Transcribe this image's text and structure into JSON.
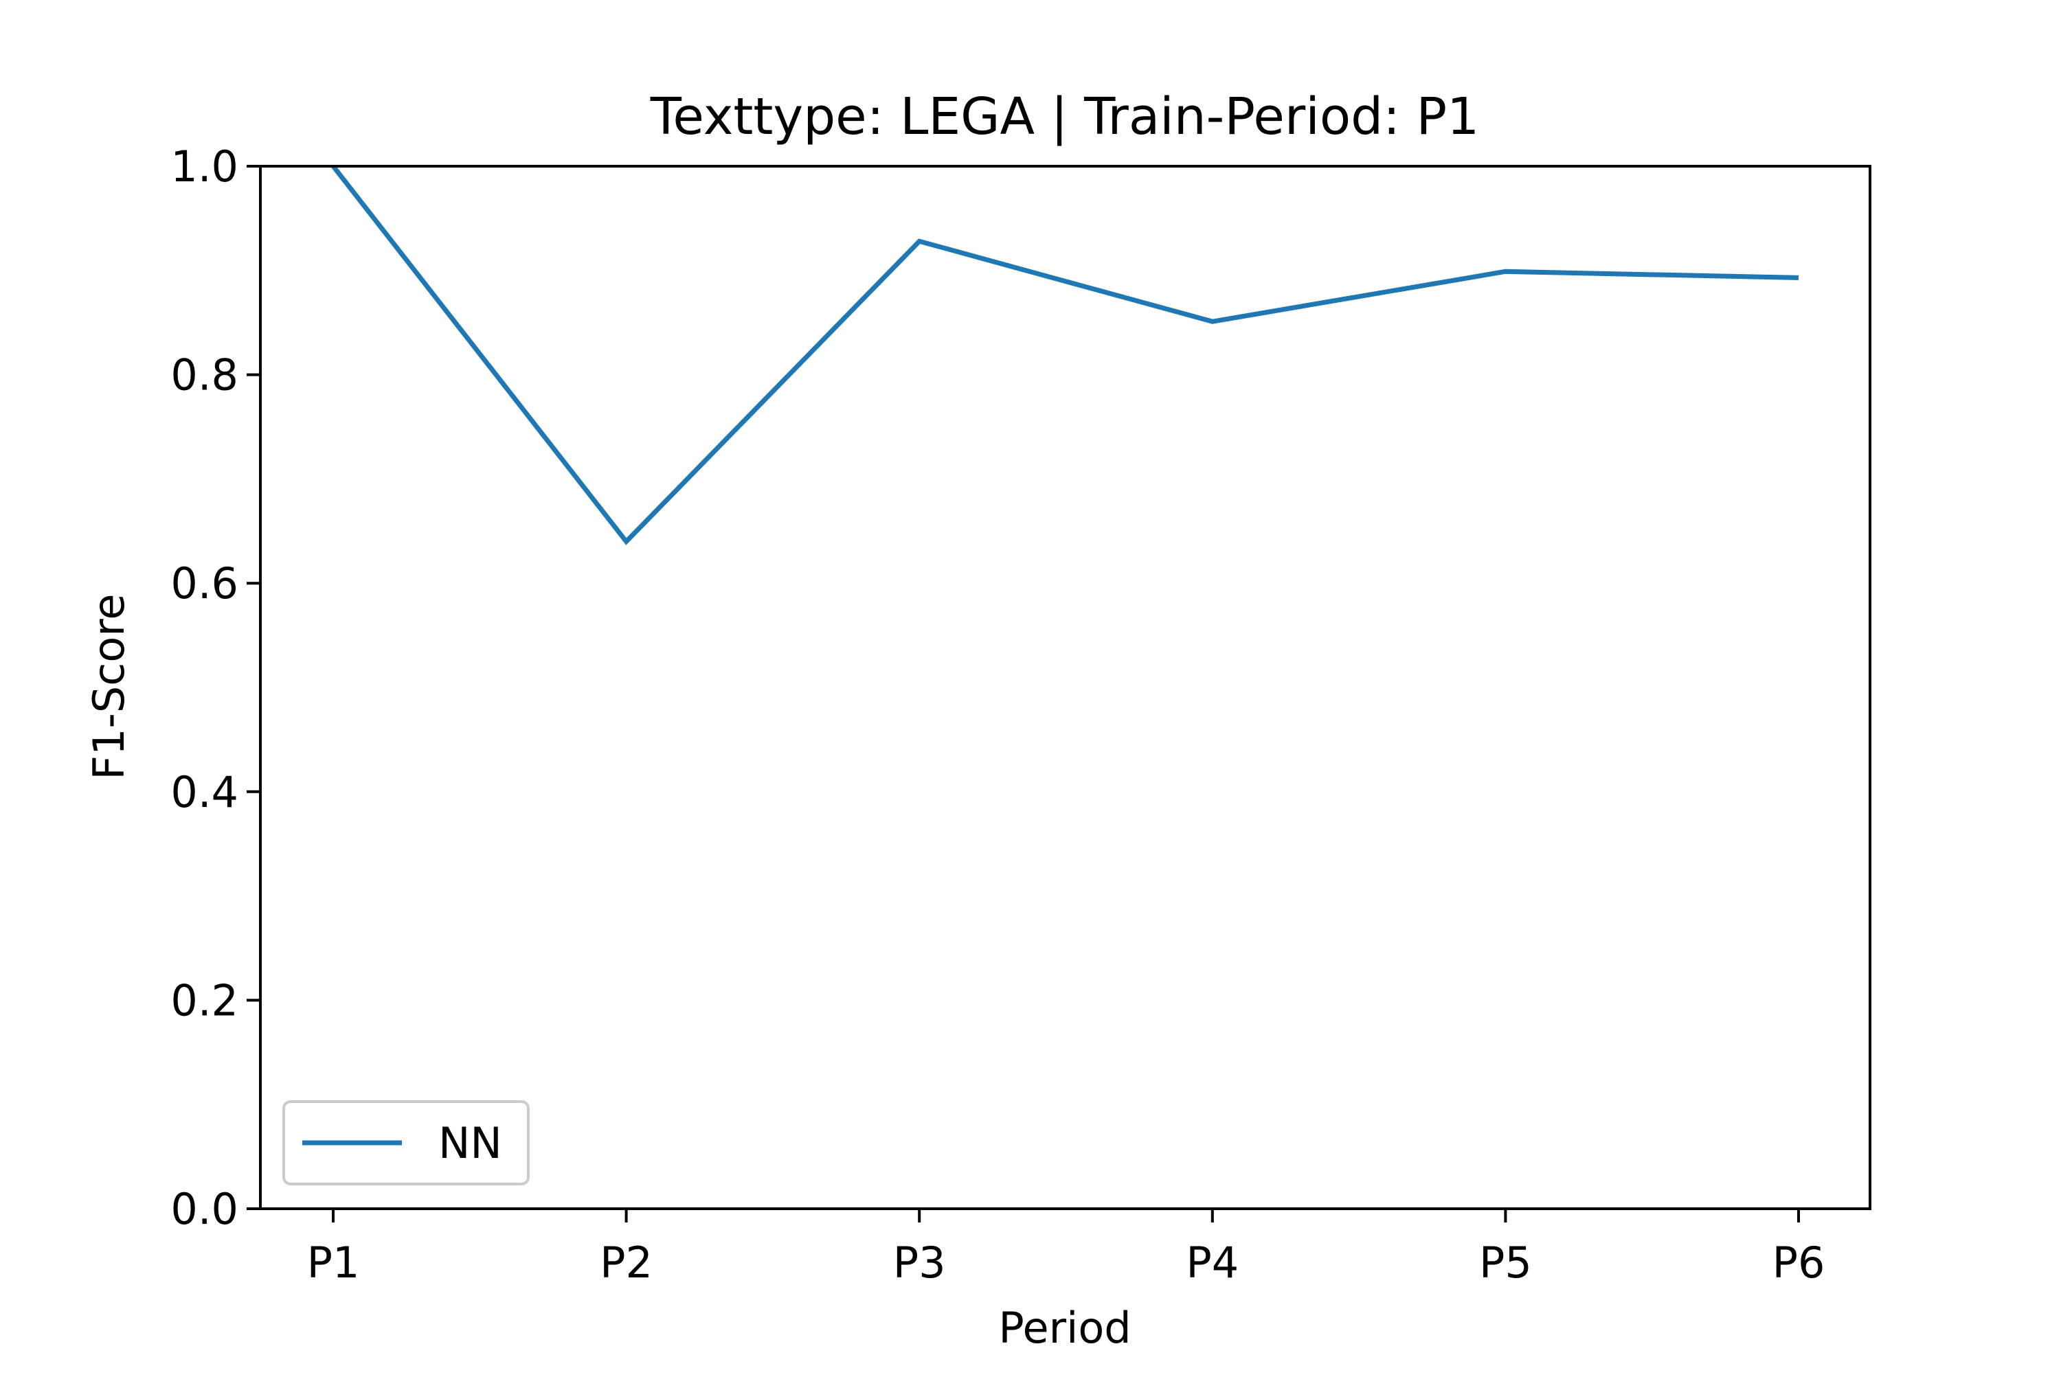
{
  "chart_data": {
    "type": "line",
    "title": "Texttype: LEGA | Train-Period: P1",
    "xlabel": "Period",
    "ylabel": "F1-Score",
    "categories": [
      "P1",
      "P2",
      "P3",
      "P4",
      "P5",
      "P6"
    ],
    "series": [
      {
        "name": "NN",
        "values": [
          1.0,
          0.64,
          0.928,
          0.851,
          0.899,
          0.893
        ],
        "color": "#1f77b4"
      }
    ],
    "ylim": [
      0.0,
      1.0
    ],
    "yticks": [
      "0.0",
      "0.2",
      "0.4",
      "0.6",
      "0.8",
      "1.0"
    ],
    "grid": false,
    "legend_position": "lower-left"
  }
}
